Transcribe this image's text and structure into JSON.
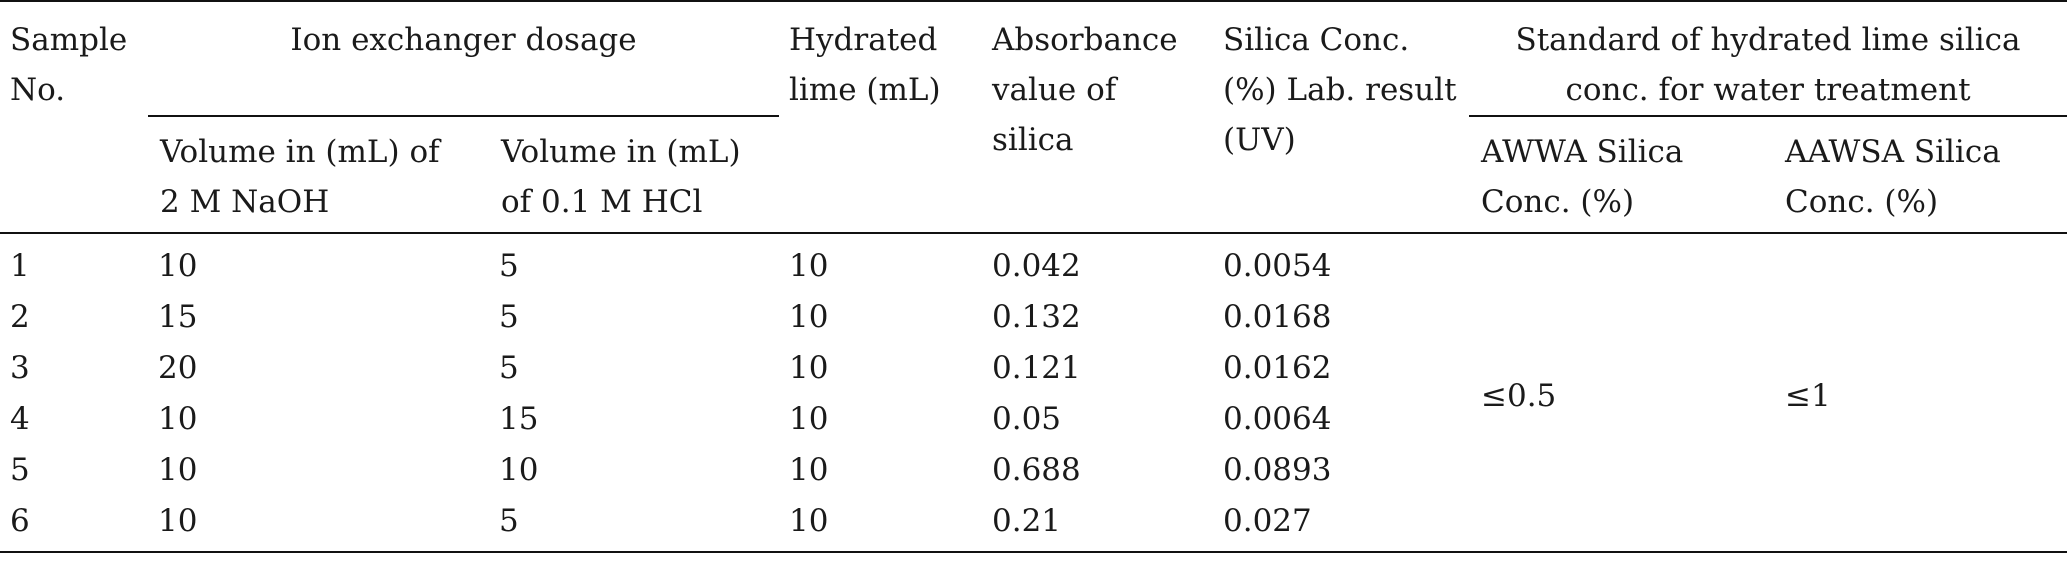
{
  "table": {
    "headers": {
      "sample_no": "Sample\nNo.",
      "ion_group": "Ion exchanger dosage",
      "naoh": "Volume in (mL) of\n2 M NaOH",
      "hcl": "Volume in (mL)\nof 0.1 M HCl",
      "lime": "Hydrated\nlime (mL)",
      "absorbance": "Absorbance\nvalue of\nsilica",
      "silica_conc": "Silica Conc.\n(%) Lab. result\n(UV)",
      "std_group": "Standard of hydrated lime silica\nconc. for water treatment",
      "awwa": "AWWA Silica\nConc. (%)",
      "aawsa": "AAWSA Silica\nConc. (%)"
    },
    "rows": [
      [
        "1",
        "10",
        "5",
        "10",
        "0.042",
        "0.0054"
      ],
      [
        "2",
        "15",
        "5",
        "10",
        "0.132",
        "0.0168"
      ],
      [
        "3",
        "20",
        "5",
        "10",
        "0.121",
        "0.0162"
      ],
      [
        "4",
        "10",
        "15",
        "10",
        "0.05",
        "0.0064"
      ],
      [
        "5",
        "10",
        "10",
        "10",
        "0.688",
        "0.0893"
      ],
      [
        "6",
        "10",
        "5",
        "10",
        "0.21",
        "0.027"
      ]
    ],
    "standards": {
      "awwa": "≤0.5",
      "aawsa": "≤1"
    }
  }
}
